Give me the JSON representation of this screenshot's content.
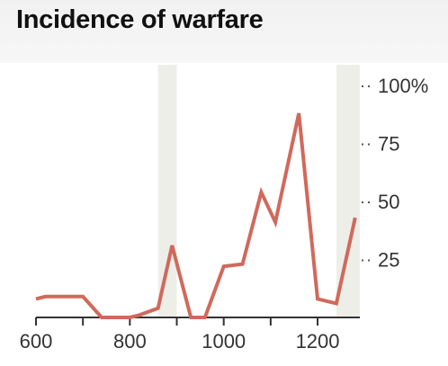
{
  "chart_data": {
    "type": "line",
    "title": "Incidence of warfare",
    "xlabel": "",
    "ylabel": "",
    "xlim": [
      600,
      1290
    ],
    "ylim": [
      0,
      100
    ],
    "x_ticks": [
      600,
      700,
      800,
      900,
      1000,
      1100,
      1200
    ],
    "x_tick_labels": [
      "600",
      "",
      "800",
      "",
      "1000",
      "",
      "1200"
    ],
    "y_ticks": [
      25,
      50,
      75,
      100
    ],
    "y_tick_labels": [
      "25",
      "50",
      "75",
      "100%"
    ],
    "shaded_bands": [
      [
        860,
        900
      ],
      [
        1240,
        1290
      ]
    ],
    "grid": false,
    "colors": {
      "line": "#d0695c",
      "band": "#eeeee9",
      "axis": "#333333"
    },
    "series": [
      {
        "x": [
          600,
          620,
          700,
          740,
          800,
          820,
          860,
          890,
          930,
          960,
          1000,
          1040,
          1080,
          1110,
          1160,
          1200,
          1240,
          1280
        ],
        "y": [
          8,
          9,
          9,
          0,
          0,
          1,
          4,
          31,
          0,
          0,
          22,
          23,
          54,
          41,
          88,
          8,
          6,
          43
        ]
      }
    ]
  }
}
